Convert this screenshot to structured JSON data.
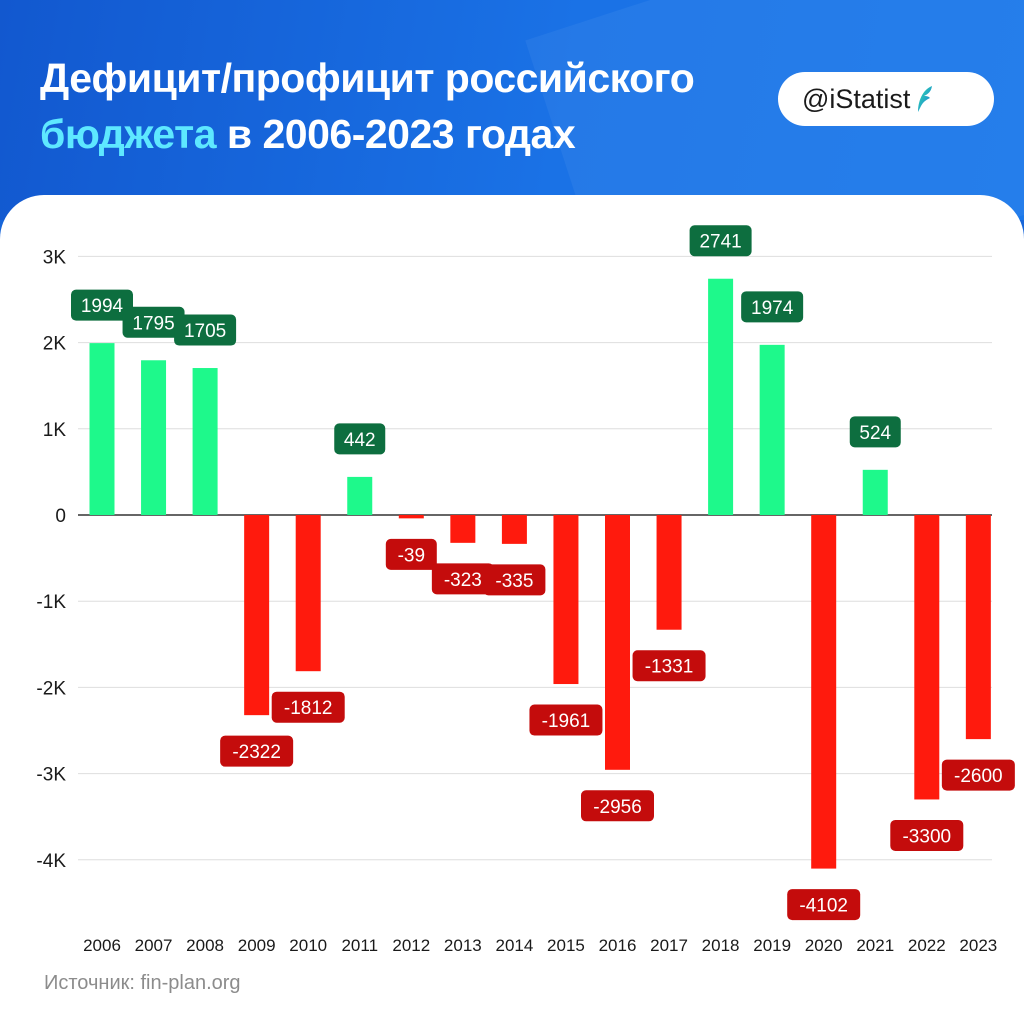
{
  "header": {
    "title_line1": "Дефицит/профицит российского",
    "title_line2_highlight": "бюджета",
    "title_line2_rest": " в 2006-2023 годах",
    "badge": "@iStatist",
    "badge_icon": "feather-logo-icon"
  },
  "source": "Источник: fin-plan.org",
  "colors": {
    "background": "#1766d9",
    "highlight": "#5ee8ff",
    "positive_bar": "#1ef98b",
    "positive_label": "#0d6e3f",
    "negative_bar": "#ff1a0d",
    "negative_label": "#c40c0c"
  },
  "chart_data": {
    "type": "bar",
    "categories": [
      "2006",
      "2007",
      "2008",
      "2009",
      "2010",
      "2011",
      "2012",
      "2013",
      "2014",
      "2015",
      "2016",
      "2017",
      "2018",
      "2019",
      "2020",
      "2021",
      "2022",
      "2023"
    ],
    "values": [
      1994,
      1795,
      1705,
      -2322,
      -1812,
      442,
      -39,
      -323,
      -335,
      -1961,
      -2956,
      -1331,
      2741,
      1974,
      -4102,
      524,
      -3300,
      -2600
    ],
    "data_labels": [
      "1994",
      "1795",
      "1705",
      "-2322",
      "-1812",
      "442",
      "-39",
      "-323",
      "-335",
      "-1961",
      "-2956",
      "-1331",
      "2741",
      "1974",
      "-4102",
      "524",
      "-3300",
      "-2600"
    ],
    "y_ticks": [
      3000,
      2000,
      1000,
      0,
      -1000,
      -2000,
      -3000,
      -4000
    ],
    "y_tick_labels": [
      "3K",
      "2K",
      "1K",
      "0",
      "-1K",
      "-2K",
      "-3K",
      "-4K"
    ],
    "ylim": [
      -4500,
      3000
    ],
    "grid": true,
    "legend": "none"
  }
}
